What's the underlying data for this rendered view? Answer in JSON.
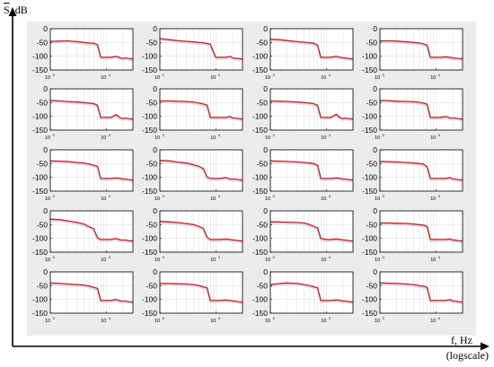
{
  "figure": {
    "y_axis_symbol": "S",
    "y_axis_unit": ", dB",
    "x_axis_line1": "f, Hz",
    "x_axis_line2": "(logscale)"
  },
  "colors": {
    "panel_bg": "#ececec",
    "plot_bg": "#ffffff",
    "line": "#a0302a",
    "shadow": "#f2c6d6",
    "grid": "#dddddd",
    "frame": "#000000"
  },
  "chart_data": {
    "type": "line",
    "layout": "5x4 grid of small multiples",
    "x_scale": "log",
    "x_range": [
      1000,
      30000
    ],
    "x_tick_values": [
      1000,
      10000
    ],
    "x_tick_labels": [
      "10",
      "10"
    ],
    "x_tick_exponents": [
      "3",
      "4"
    ],
    "y_range": [
      -150,
      0
    ],
    "y_ticks": [
      0,
      -50,
      -100,
      -150
    ],
    "y_tick_labels": [
      "0",
      "-50",
      "-100",
      "-150"
    ],
    "grid": true,
    "x": [
      1000,
      1500,
      2000,
      3000,
      4000,
      5000,
      6000,
      7000,
      8000,
      10000,
      12000,
      15000,
      18000,
      20000,
      22000,
      25000,
      30000
    ],
    "panels": [
      {
        "row": 1,
        "col": 1,
        "y": [
          -46,
          -45,
          -44,
          -47,
          -50,
          -52,
          -53,
          -58,
          -104,
          -104,
          -104,
          -100,
          -106,
          -108,
          -106,
          -108,
          -110
        ]
      },
      {
        "row": 1,
        "col": 2,
        "y": [
          -36,
          -40,
          -43,
          -46,
          -48,
          -50,
          -51,
          -54,
          -56,
          -104,
          -104,
          -104,
          -100,
          -106,
          -107,
          -108,
          -110
        ]
      },
      {
        "row": 1,
        "col": 3,
        "y": [
          -38,
          -40,
          -43,
          -47,
          -49,
          -51,
          -53,
          -60,
          -104,
          -104,
          -104,
          -100,
          -104,
          -106,
          -106,
          -108,
          -110
        ]
      },
      {
        "row": 1,
        "col": 4,
        "y": [
          -44,
          -44,
          -45,
          -48,
          -50,
          -52,
          -55,
          -60,
          -104,
          -104,
          -104,
          -102,
          -104,
          -106,
          -107,
          -108,
          -110
        ]
      },
      {
        "row": 2,
        "col": 1,
        "y": [
          -42,
          -44,
          -46,
          -48,
          -50,
          -52,
          -54,
          -60,
          -104,
          -104,
          -104,
          -94,
          -106,
          -108,
          -106,
          -108,
          -110
        ]
      },
      {
        "row": 2,
        "col": 2,
        "y": [
          -44,
          -44,
          -45,
          -46,
          -48,
          -52,
          -55,
          -59,
          -104,
          -104,
          -104,
          -104,
          -100,
          -106,
          -106,
          -108,
          -110
        ]
      },
      {
        "row": 2,
        "col": 3,
        "y": [
          -44,
          -45,
          -46,
          -48,
          -50,
          -52,
          -54,
          -60,
          -104,
          -104,
          -104,
          -92,
          -106,
          -108,
          -106,
          -108,
          -110
        ]
      },
      {
        "row": 2,
        "col": 4,
        "y": [
          -42,
          -43,
          -45,
          -46,
          -47,
          -49,
          -52,
          -56,
          -104,
          -104,
          -104,
          -100,
          -106,
          -106,
          -106,
          -108,
          -110
        ]
      },
      {
        "row": 3,
        "col": 1,
        "y": [
          -40,
          -41,
          -42,
          -46,
          -48,
          -52,
          -56,
          -60,
          -104,
          -104,
          -104,
          -102,
          -104,
          -106,
          -106,
          -108,
          -110
        ]
      },
      {
        "row": 3,
        "col": 2,
        "y": [
          -38,
          -40,
          -44,
          -48,
          -54,
          -60,
          -68,
          -98,
          -104,
          -104,
          -104,
          -100,
          -106,
          -106,
          -106,
          -108,
          -110
        ]
      },
      {
        "row": 3,
        "col": 3,
        "y": [
          -40,
          -41,
          -42,
          -44,
          -46,
          -48,
          -50,
          -56,
          -104,
          -104,
          -104,
          -102,
          -104,
          -106,
          -106,
          -108,
          -110
        ]
      },
      {
        "row": 3,
        "col": 4,
        "y": [
          -42,
          -43,
          -44,
          -46,
          -48,
          -50,
          -52,
          -62,
          -104,
          -104,
          -104,
          -104,
          -100,
          -106,
          -106,
          -108,
          -110
        ]
      },
      {
        "row": 4,
        "col": 1,
        "y": [
          -30,
          -32,
          -36,
          -42,
          -48,
          -58,
          -66,
          -98,
          -104,
          -104,
          -104,
          -100,
          -106,
          -106,
          -106,
          -108,
          -110
        ]
      },
      {
        "row": 4,
        "col": 2,
        "y": [
          -38,
          -40,
          -42,
          -46,
          -50,
          -56,
          -64,
          -96,
          -104,
          -104,
          -104,
          -102,
          -104,
          -106,
          -106,
          -108,
          -110
        ]
      },
      {
        "row": 4,
        "col": 3,
        "y": [
          -40,
          -40,
          -41,
          -42,
          -44,
          -50,
          -56,
          -62,
          -100,
          -104,
          -104,
          -102,
          -104,
          -106,
          -106,
          -108,
          -110
        ]
      },
      {
        "row": 4,
        "col": 4,
        "y": [
          -44,
          -44,
          -45,
          -46,
          -48,
          -50,
          -52,
          -56,
          -104,
          -104,
          -104,
          -104,
          -102,
          -106,
          -106,
          -108,
          -110
        ]
      },
      {
        "row": 5,
        "col": 1,
        "y": [
          -40,
          -42,
          -44,
          -46,
          -48,
          -52,
          -56,
          -60,
          -104,
          -104,
          -104,
          -100,
          -106,
          -106,
          -106,
          -108,
          -110
        ]
      },
      {
        "row": 5,
        "col": 2,
        "y": [
          -42,
          -42,
          -43,
          -44,
          -46,
          -50,
          -54,
          -58,
          -104,
          -104,
          -104,
          -102,
          -104,
          -106,
          -106,
          -108,
          -110
        ]
      },
      {
        "row": 5,
        "col": 3,
        "y": [
          -46,
          -42,
          -40,
          -42,
          -46,
          -50,
          -54,
          -58,
          -104,
          -104,
          -104,
          -102,
          -104,
          -106,
          -106,
          -108,
          -110
        ]
      },
      {
        "row": 5,
        "col": 4,
        "y": [
          -40,
          -41,
          -42,
          -44,
          -46,
          -50,
          -52,
          -56,
          -104,
          -104,
          -104,
          -104,
          -100,
          -106,
          -106,
          -108,
          -110
        ]
      }
    ]
  }
}
